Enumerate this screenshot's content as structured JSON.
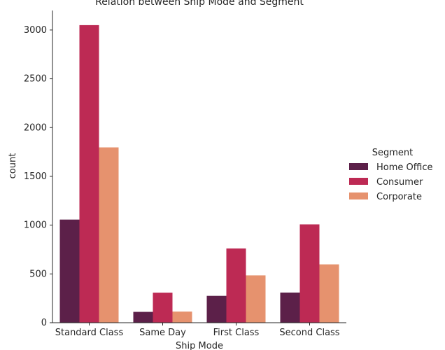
{
  "chart_data": {
    "type": "bar",
    "title": "Relation between Ship Mode and Segment",
    "xlabel": "Ship Mode",
    "ylabel": "count",
    "categories": [
      "Standard Class",
      "Same Day",
      "First Class",
      "Second Class"
    ],
    "series": [
      {
        "name": "Home Office",
        "color": "#5c2049",
        "values": [
          1057,
          111,
          275,
          309
        ]
      },
      {
        "name": "Consumer",
        "color": "#bd2a54",
        "values": [
          3050,
          308,
          761,
          1008
        ]
      },
      {
        "name": "Corporate",
        "color": "#e6926e",
        "values": [
          1797,
          114,
          485,
          598
        ]
      }
    ],
    "ylim": [
      0,
      3200
    ],
    "yticks": [
      0,
      500,
      1000,
      1500,
      2000,
      2500,
      3000
    ],
    "grid": false,
    "legend": {
      "title": "Segment",
      "placement": "right"
    }
  }
}
